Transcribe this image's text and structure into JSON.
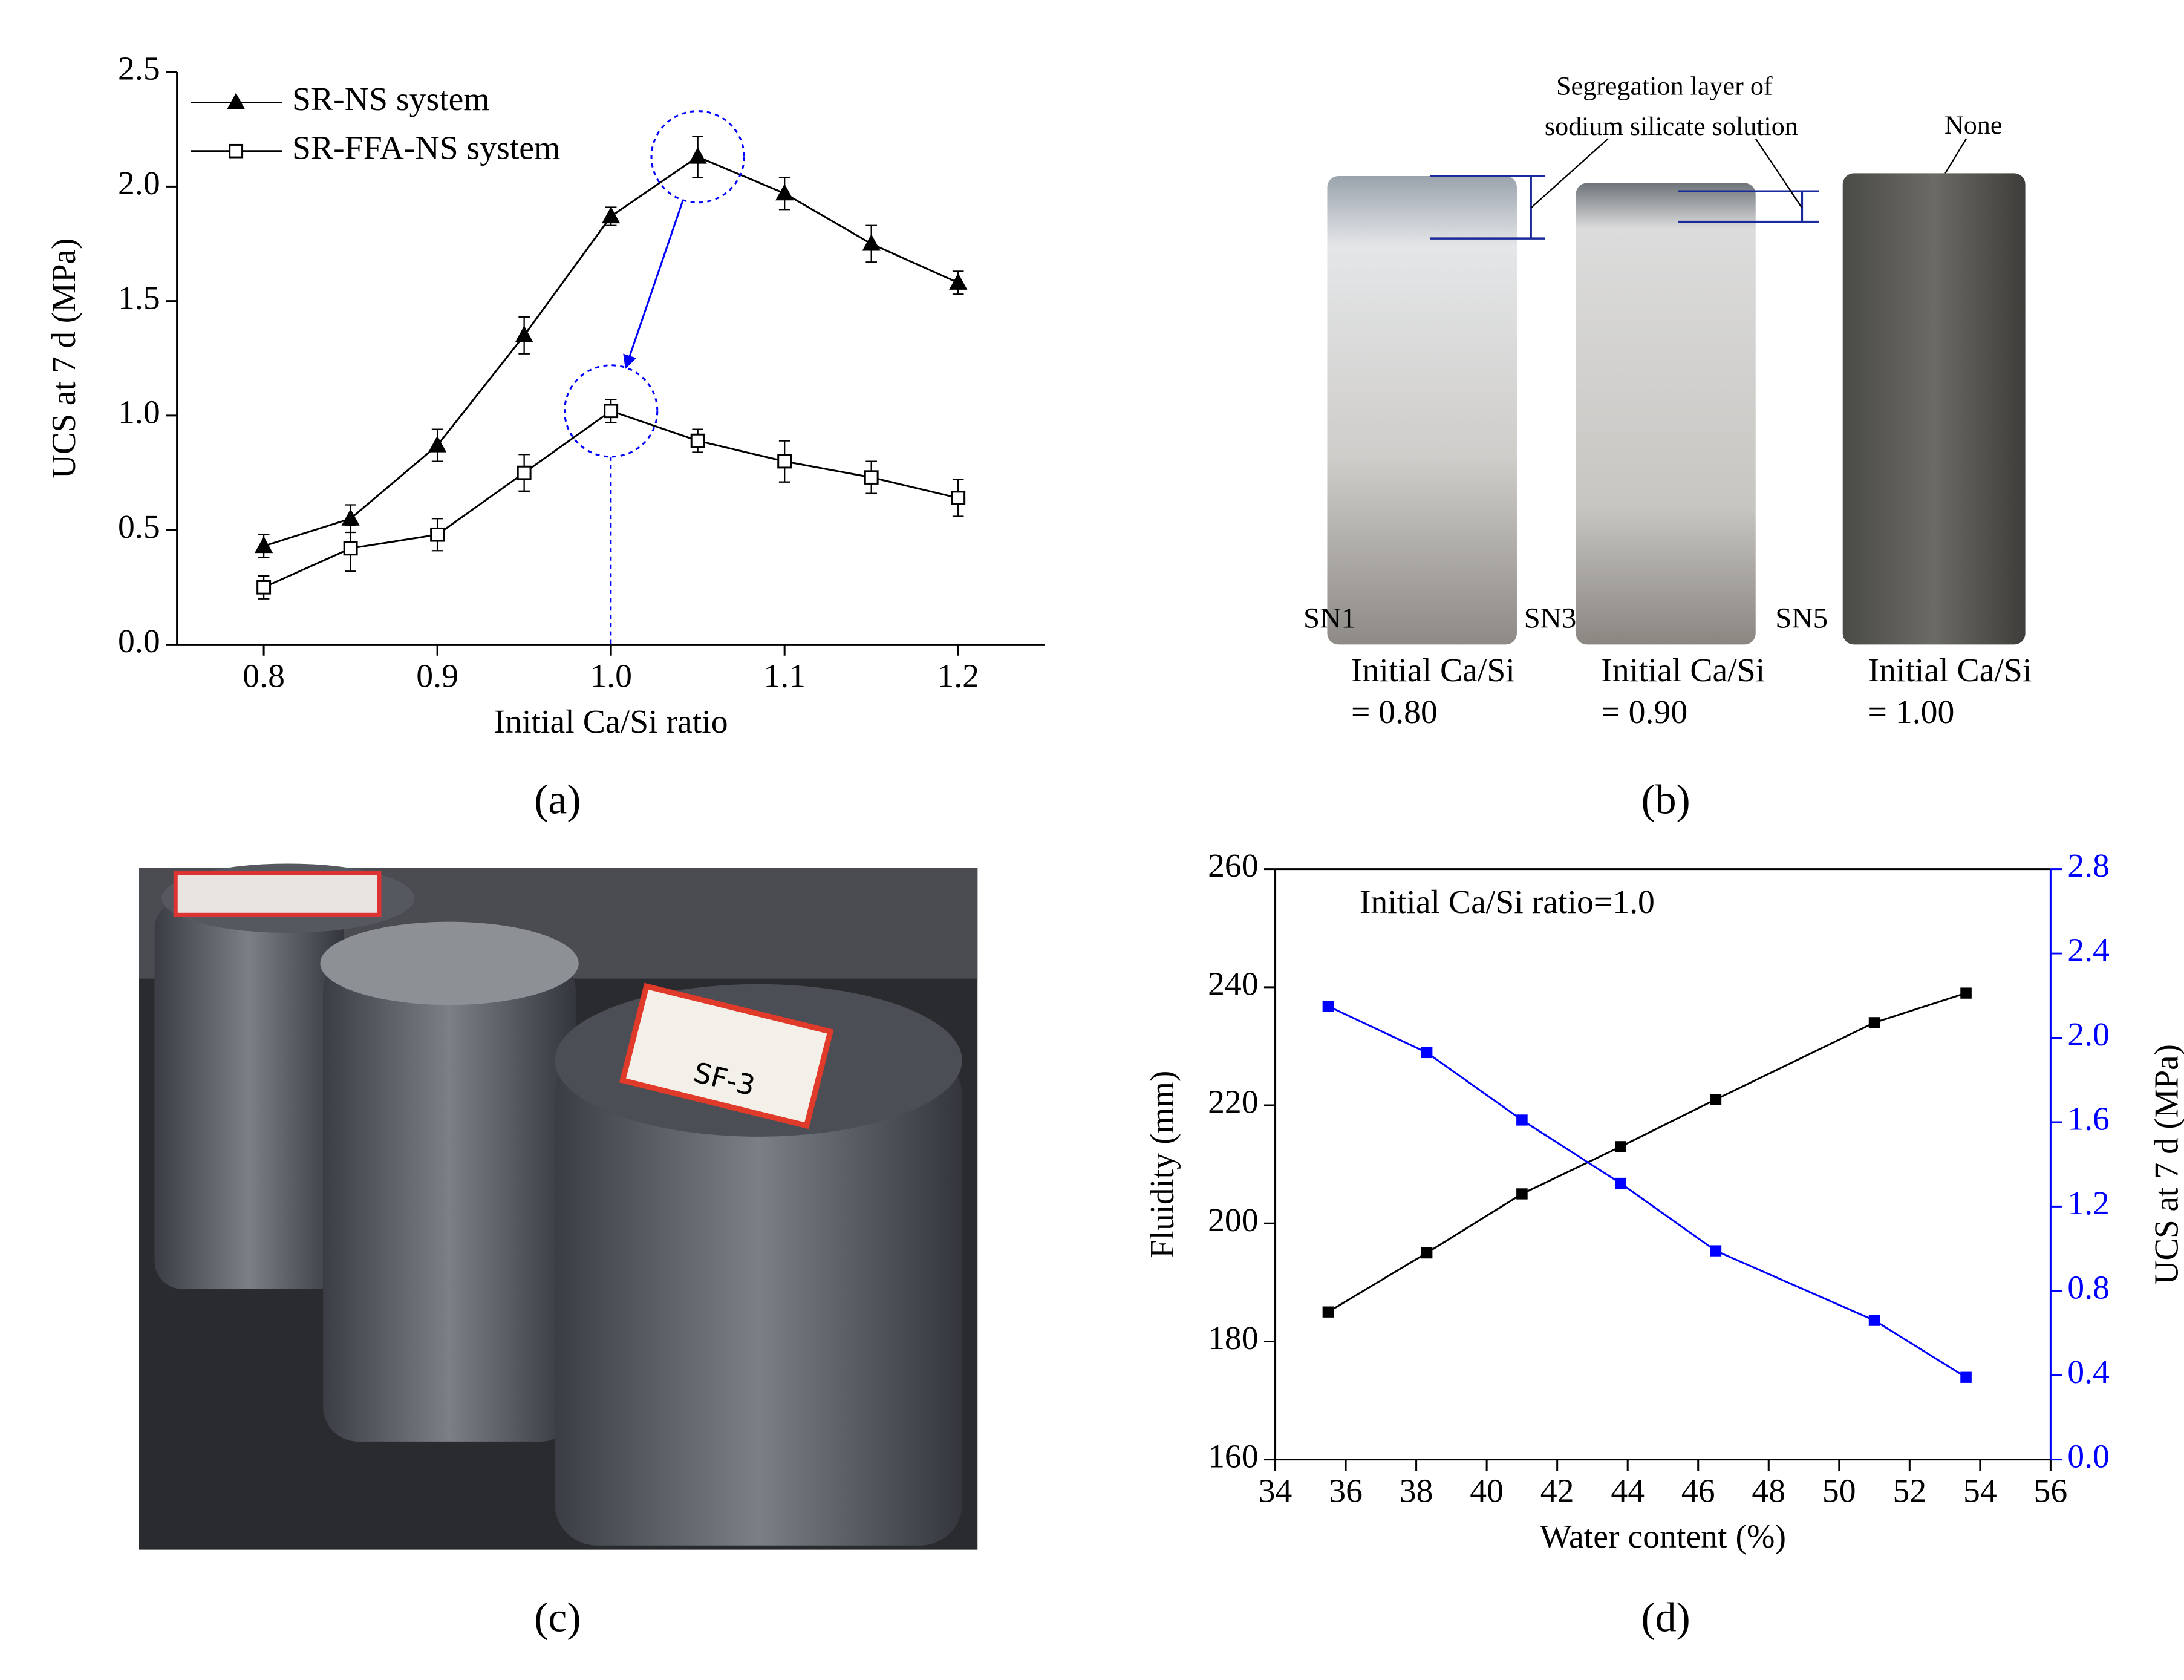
{
  "chart_data": [
    {
      "type": "line",
      "panel_label": "(a)",
      "x_label": "Initial Ca/Si ratio",
      "y_label": "UCS at 7 d (MPa)",
      "x": [
        0.8,
        0.85,
        0.9,
        0.95,
        1.0,
        1.05,
        1.1,
        1.15,
        1.2
      ],
      "xlim": [
        0.75,
        1.25
      ],
      "xticks": [
        0.8,
        0.9,
        {
          "value": 1,
          "label": "1.0"
        },
        1.1,
        1.2
      ],
      "ylim": [
        0,
        2.5
      ],
      "yticks": [
        {
          "value": 0,
          "label": "0.0"
        },
        0.5,
        {
          "value": 1,
          "label": "1.0"
        },
        1.5,
        {
          "value": 2,
          "label": "2.0"
        },
        2.5
      ],
      "legend": "upper left",
      "series": [
        {
          "name": "SR-NS system",
          "color": "#000000",
          "marker": "triangle",
          "values": [
            0.43,
            0.55,
            0.87,
            1.35,
            1.87,
            2.13,
            1.97,
            1.75,
            1.58
          ],
          "errors": [
            0.05,
            0.06,
            0.07,
            0.08,
            0.04,
            0.09,
            0.07,
            0.08,
            0.05
          ]
        },
        {
          "name": "SR-FFA-NS system",
          "color": "#000000",
          "marker": "square-open",
          "values": [
            0.25,
            0.42,
            0.48,
            0.75,
            1.02,
            0.89,
            0.8,
            0.73,
            0.64
          ],
          "errors": [
            0.05,
            0.1,
            0.07,
            0.08,
            0.05,
            0.05,
            0.09,
            0.07,
            0.08
          ]
        }
      ]
    },
    {
      "type": "line",
      "panel_label": "(d)",
      "annotation": "Initial Ca/Si ratio=1.0",
      "x_label": "Water content (%)",
      "y_label": "Fluidity (mm)",
      "y2_label": "UCS at 7 d (MPa)",
      "x": [
        35.5,
        38.3,
        41,
        43.8,
        46.5,
        51,
        53.6
      ],
      "xlim": [
        34,
        56
      ],
      "xticks": [
        34,
        36,
        38,
        40,
        42,
        44,
        46,
        48,
        50,
        52,
        54,
        56
      ],
      "ylim": [
        160,
        260
      ],
      "yticks": [
        160,
        180,
        200,
        220,
        240,
        260
      ],
      "y2lim": [
        0,
        2.8
      ],
      "y2ticks": [
        {
          "value": 0,
          "label": "0.0"
        },
        0.4,
        0.8,
        1.2,
        1.6,
        {
          "value": 2,
          "label": "2.0"
        },
        2.4,
        2.8
      ],
      "series": [
        {
          "color": "#000000",
          "marker": "square",
          "values": [
            185,
            195,
            205,
            213,
            221,
            234,
            239
          ]
        },
        {
          "color": "#0000ff",
          "marker": "square",
          "axis": "y2",
          "values": [
            2.15,
            1.93,
            1.61,
            1.31,
            0.99,
            0.66,
            0.39
          ]
        }
      ]
    }
  ],
  "photos": [
    {
      "panel_label": "(b)",
      "annotations": [
        {
          "lines": [
            "Segregation layer of",
            "sodium silicate solution"
          ]
        },
        {
          "lines": [
            "None"
          ]
        }
      ],
      "specimens": [
        {
          "name": "SN1",
          "caption": [
            "Initial Ca/Si",
            "= 0.80"
          ]
        },
        {
          "name": "SN3",
          "caption": [
            "Initial Ca/Si",
            "= 0.90"
          ]
        },
        {
          "name": "SN5",
          "caption": [
            "Initial Ca/Si",
            "= 1.00"
          ]
        }
      ]
    },
    {
      "panel_label": "(c)",
      "label": "SF-3"
    }
  ]
}
